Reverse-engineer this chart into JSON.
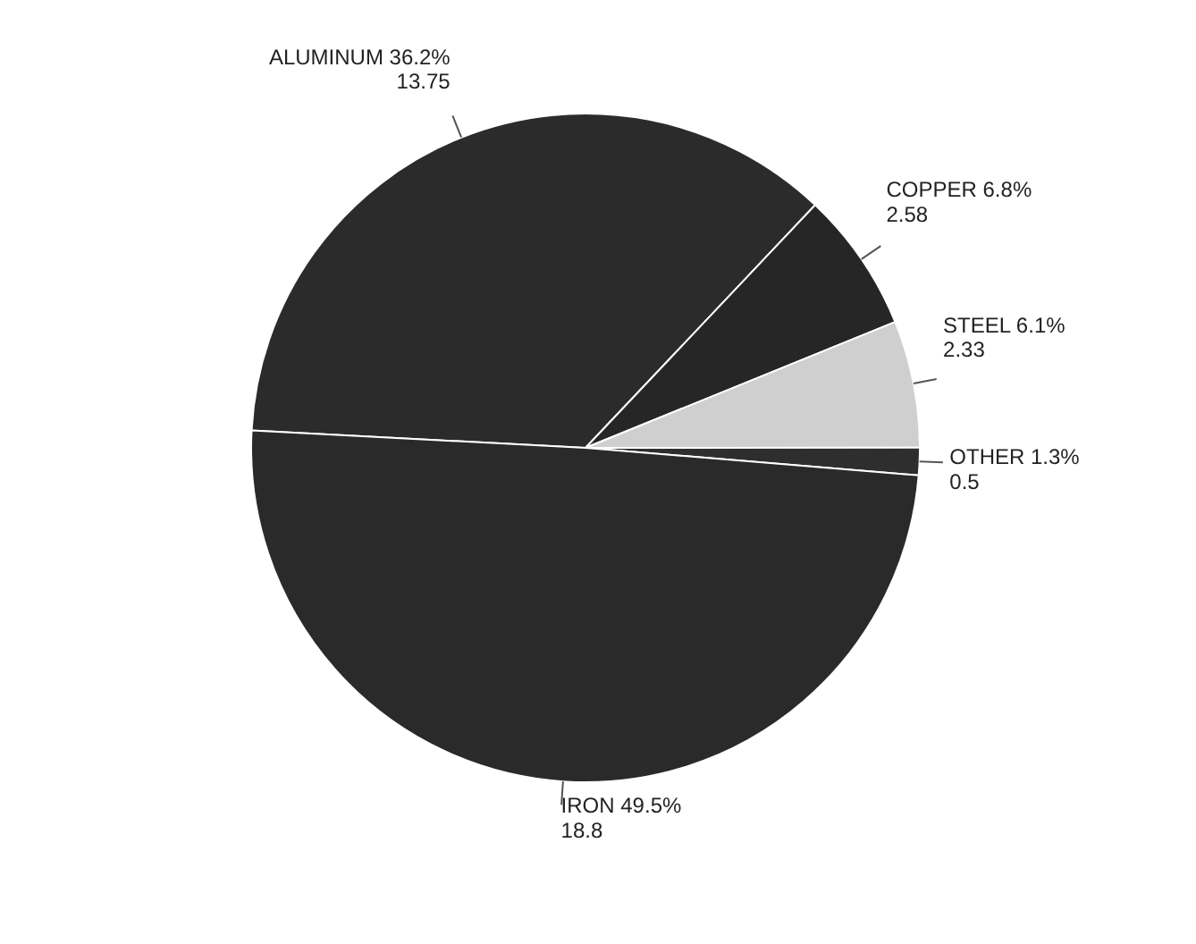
{
  "chart_data": {
    "type": "pie",
    "categories": [
      "ALUMINUM 36.2%",
      "COPPER 6.8%",
      "STEEL 6.1%",
      "OTHER 1.3%",
      "IRON 49.5%"
    ],
    "values": [
      13.75,
      2.58,
      2.33,
      0.5,
      18.8
    ],
    "colors": [
      "#2b2b2b",
      "#262626",
      "#cfcfcf",
      "#2e2e2e",
      "#2a2a2a"
    ],
    "data_labels": true
  }
}
